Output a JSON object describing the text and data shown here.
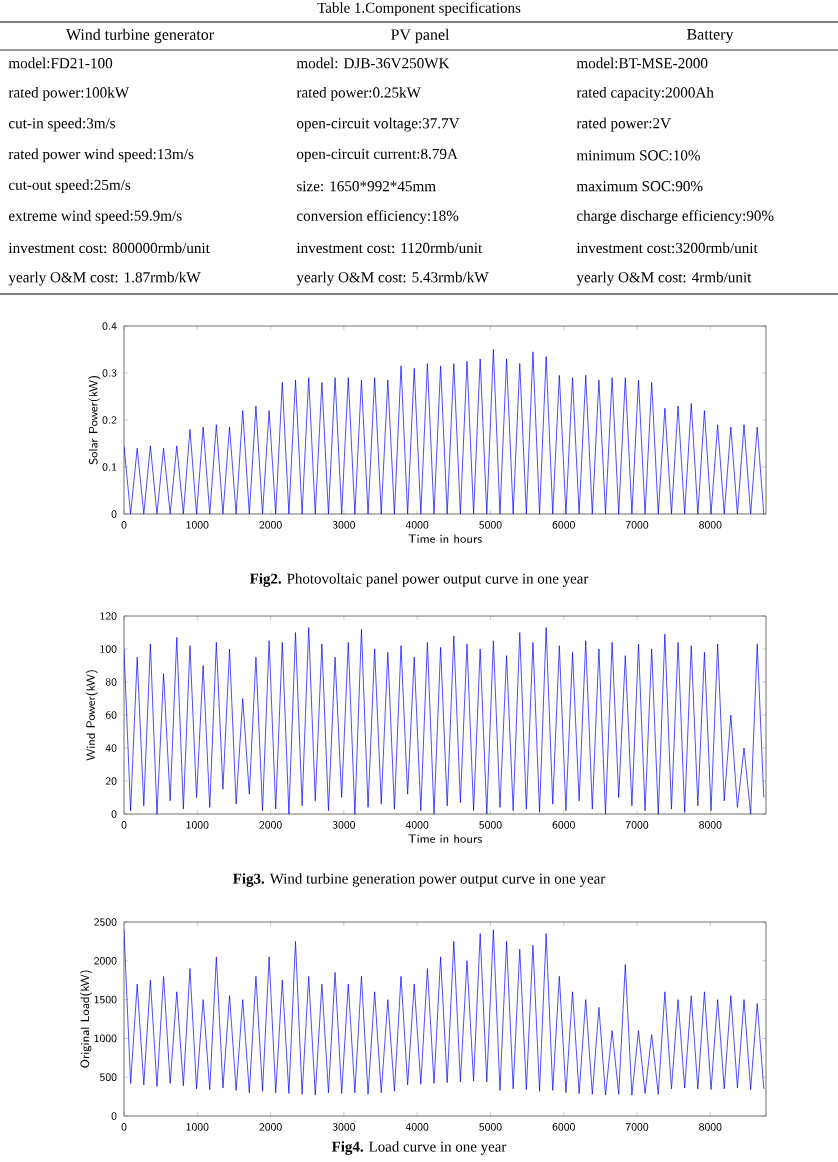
{
  "chart_data": [
    {
      "type": "other",
      "title": "Table 1.Component specifications",
      "categories": [
        "Wind turbine generator",
        "PV panel",
        "Battery"
      ],
      "annotations": [
        "model:FD21-100",
        "model: DJB-36V250WK",
        "model:BT-MSE-2000",
        "rated power:100kW",
        "rated power:0.25kW",
        "rated capacity:2000Ah",
        "cut-in speed:3m/s",
        "open-circuit voltage:37.7V",
        "rated power:2V",
        "rated power wind speed:13m/s",
        "open-circuit current:8.79A",
        "minimum SOC:10%",
        "cut-out speed:25m/s",
        "size: 1650*992*45mm",
        "maximum SOC:90%",
        "extreme wind speed:59.9m/s",
        "conversion efficiency:18%",
        "charge discharge efficiency:90%",
        "investment cost: 800000rmb/unit",
        "investment cost: 1120rmb/unit",
        "investment cost:3200rmb/unit",
        "yearly O&M cost: 1.87rmb/kW",
        "yearly O&M cost: 5.43rmb/kW",
        "yearly O&M cost: 4rmb/unit"
      ]
    },
    {
      "type": "line",
      "title": "**Fig2.** Photovoltaic panel power output curve in one year",
      "xlabel": "Time in hours",
      "ylabel": "Solar Power(kW)",
      "color": "#0000ff",
      "x": [
        0,
        90,
        180,
        270,
        360,
        450,
        540,
        630,
        720,
        810,
        900,
        990,
        1080,
        1170,
        1260,
        1350,
        1440,
        1530,
        1620,
        1710,
        1800,
        1890,
        1980,
        2070,
        2160,
        2250,
        2340,
        2430,
        2520,
        2610,
        2700,
        2790,
        2880,
        2970,
        3060,
        3150,
        3240,
        3330,
        3420,
        3510,
        3600,
        3690,
        3780,
        3870,
        3960,
        4050,
        4140,
        4230,
        4320,
        4410,
        4500,
        4590,
        4680,
        4770,
        4860,
        4950,
        5040,
        5130,
        5220,
        5310,
        5400,
        5490,
        5580,
        5670,
        5760,
        5850,
        5940,
        6030,
        6120,
        6210,
        6300,
        6390,
        6480,
        6570,
        6660,
        6750,
        6840,
        6930,
        7020,
        7110,
        7200,
        7290,
        7380,
        7470,
        7560,
        7650,
        7740,
        7830,
        7920,
        8010,
        8100,
        8190,
        8280,
        8370,
        8460,
        8550,
        8640,
        8730
      ],
      "values": [
        0.145,
        0,
        0.14,
        0,
        0.145,
        0,
        0.14,
        0,
        0.145,
        0,
        0.18,
        0,
        0.185,
        0,
        0.19,
        0,
        0.185,
        0,
        0.22,
        0,
        0.23,
        0,
        0.22,
        0,
        0.28,
        0,
        0.285,
        0,
        0.29,
        0,
        0.28,
        0,
        0.29,
        0,
        0.29,
        0,
        0.285,
        0,
        0.29,
        0,
        0.285,
        0,
        0.315,
        0,
        0.31,
        0,
        0.32,
        0,
        0.315,
        0,
        0.32,
        0,
        0.325,
        0,
        0.33,
        0,
        0.35,
        0,
        0.33,
        0,
        0.32,
        0,
        0.345,
        0,
        0.335,
        0,
        0.295,
        0,
        0.29,
        0,
        0.295,
        0,
        0.285,
        0,
        0.29,
        0,
        0.29,
        0,
        0.285,
        0,
        0.28,
        0,
        0.225,
        0,
        0.23,
        0,
        0.235,
        0,
        0.22,
        0,
        0.19,
        0,
        0.185,
        0,
        0.19,
        0,
        0.185,
        0
      ],
      "xlim": [
        0,
        8760
      ],
      "ylim": [
        0,
        0.4
      ],
      "xticks": [
        0,
        1000,
        2000,
        3000,
        4000,
        5000,
        6000,
        7000,
        8000
      ],
      "yticks": [
        0,
        0.1,
        0.2,
        0.3,
        0.4
      ]
    },
    {
      "type": "line",
      "title": "**Fig3.** Wind turbine generation power output curve in one year",
      "xlabel": "Time in hours",
      "ylabel": "Wind Power(kW)",
      "color": "#0000ff",
      "x": [
        0,
        90,
        180,
        270,
        360,
        450,
        540,
        630,
        720,
        810,
        900,
        990,
        1080,
        1170,
        1260,
        1350,
        1440,
        1530,
        1620,
        1710,
        1800,
        1890,
        1980,
        2070,
        2160,
        2250,
        2340,
        2430,
        2520,
        2610,
        2700,
        2790,
        2880,
        2970,
        3060,
        3150,
        3240,
        3330,
        3420,
        3510,
        3600,
        3690,
        3780,
        3870,
        3960,
        4050,
        4140,
        4230,
        4320,
        4410,
        4500,
        4590,
        4680,
        4770,
        4860,
        4950,
        5040,
        5130,
        5220,
        5310,
        5400,
        5490,
        5580,
        5670,
        5760,
        5850,
        5940,
        6030,
        6120,
        6210,
        6300,
        6390,
        6480,
        6570,
        6660,
        6750,
        6840,
        6930,
        7020,
        7110,
        7200,
        7290,
        7380,
        7470,
        7560,
        7650,
        7740,
        7830,
        7920,
        8010,
        8100,
        8190,
        8280,
        8370,
        8460,
        8550,
        8640,
        8730
      ],
      "values": [
        100,
        2,
        95,
        5,
        103,
        0,
        85,
        8,
        107,
        3,
        102,
        10,
        90,
        4,
        104,
        15,
        100,
        6,
        70,
        12,
        95,
        2,
        105,
        3,
        104,
        0,
        110,
        5,
        113,
        8,
        103,
        2,
        95,
        10,
        104,
        0,
        112,
        4,
        100,
        6,
        98,
        3,
        102,
        12,
        95,
        2,
        104,
        0,
        101,
        5,
        108,
        7,
        103,
        2,
        100,
        0,
        105,
        4,
        96,
        2,
        110,
        3,
        104,
        1,
        113,
        6,
        102,
        2,
        98,
        8,
        105,
        3,
        100,
        0,
        104,
        10,
        96,
        5,
        103,
        2,
        100,
        0,
        109,
        3,
        104,
        1,
        102,
        5,
        98,
        2,
        103,
        8,
        60,
        4,
        40,
        0,
        103,
        10
      ],
      "xlim": [
        0,
        8760
      ],
      "ylim": [
        0,
        120
      ],
      "xticks": [
        0,
        1000,
        2000,
        3000,
        4000,
        5000,
        6000,
        7000,
        8000
      ],
      "yticks": [
        0,
        20,
        40,
        60,
        80,
        100,
        120
      ]
    },
    {
      "type": "line",
      "title": "**Fig4.** Load curve in one year",
      "ylabel": "Original Load(kW)",
      "color": "#0000ff",
      "x": [
        0,
        90,
        180,
        270,
        360,
        450,
        540,
        630,
        720,
        810,
        900,
        990,
        1080,
        1170,
        1260,
        1350,
        1440,
        1530,
        1620,
        1710,
        1800,
        1890,
        1980,
        2070,
        2160,
        2250,
        2340,
        2430,
        2520,
        2610,
        2700,
        2790,
        2880,
        2970,
        3060,
        3150,
        3240,
        3330,
        3420,
        3510,
        3600,
        3690,
        3780,
        3870,
        3960,
        4050,
        4140,
        4230,
        4320,
        4410,
        4500,
        4590,
        4680,
        4770,
        4860,
        4950,
        5040,
        5130,
        5220,
        5310,
        5400,
        5490,
        5580,
        5670,
        5760,
        5850,
        5940,
        6030,
        6120,
        6210,
        6300,
        6390,
        6480,
        6570,
        6660,
        6750,
        6840,
        6930,
        7020,
        7110,
        7200,
        7290,
        7380,
        7470,
        7560,
        7650,
        7740,
        7830,
        7920,
        8010,
        8100,
        8190,
        8280,
        8370,
        8460,
        8550,
        8640,
        8730
      ],
      "values": [
        2400,
        420,
        1700,
        400,
        1750,
        380,
        1800,
        420,
        1600,
        390,
        1900,
        350,
        1500,
        340,
        2050,
        360,
        1550,
        330,
        1500,
        300,
        1800,
        320,
        2050,
        300,
        1750,
        290,
        2250,
        280,
        1800,
        270,
        1700,
        300,
        1850,
        290,
        1700,
        300,
        1800,
        280,
        1600,
        300,
        1500,
        320,
        1800,
        400,
        1700,
        410,
        1900,
        420,
        2050,
        430,
        2250,
        440,
        2000,
        450,
        2350,
        440,
        2400,
        330,
        2250,
        350,
        2150,
        340,
        2200,
        320,
        2350,
        330,
        1800,
        300,
        1600,
        290,
        1500,
        280,
        1400,
        270,
        1100,
        280,
        1950,
        270,
        1100,
        290,
        1050,
        280,
        1600,
        350,
        1500,
        360,
        1550,
        350,
        1600,
        340,
        1500,
        350,
        1550,
        360,
        1500,
        340,
        1450,
        350
      ],
      "xlim": [
        0,
        8760
      ],
      "ylim": [
        0,
        2500
      ],
      "xticks": [
        0,
        1000,
        2000,
        3000,
        4000,
        5000,
        6000,
        7000,
        8000
      ],
      "yticks": [
        0,
        500,
        1000,
        1500,
        2000,
        2500
      ]
    }
  ]
}
